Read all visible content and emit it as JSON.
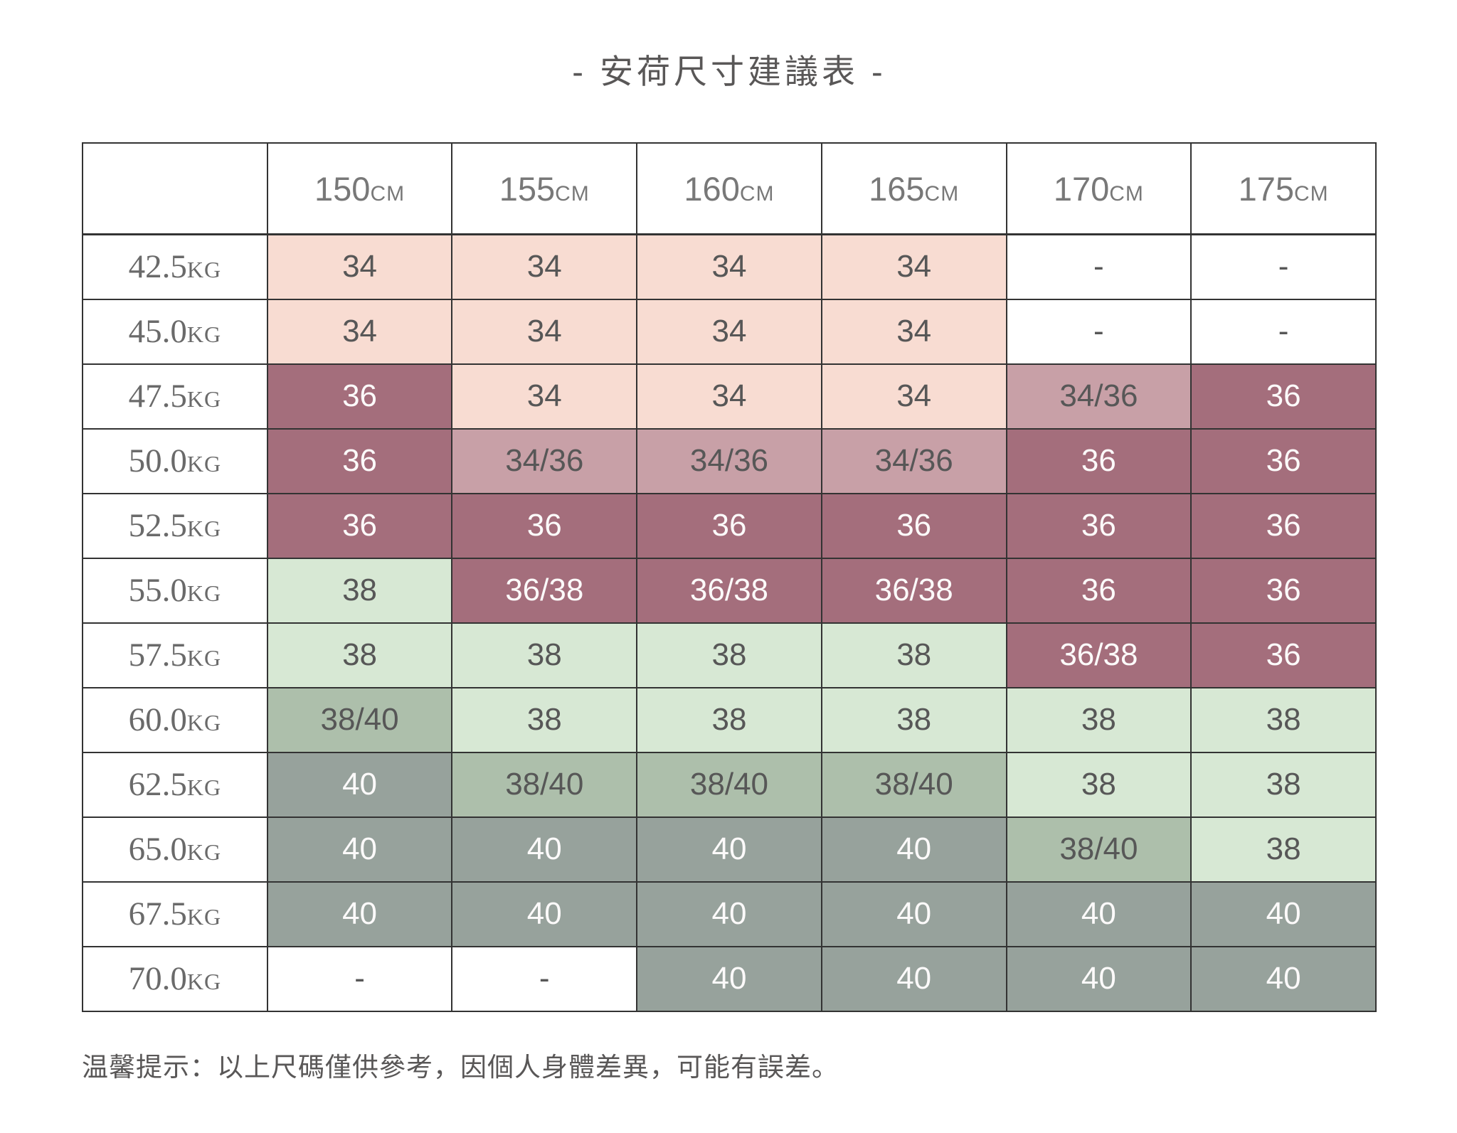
{
  "title": "- 安荷尺寸建議表 -",
  "footer": "温馨提示：以上尺碼僅供參考，因個人身體差異，可能有誤差。",
  "columns": [
    {
      "value": "150",
      "unit": "CM"
    },
    {
      "value": "155",
      "unit": "CM"
    },
    {
      "value": "160",
      "unit": "CM"
    },
    {
      "value": "165",
      "unit": "CM"
    },
    {
      "value": "170",
      "unit": "CM"
    },
    {
      "value": "175",
      "unit": "CM"
    }
  ],
  "rows": [
    {
      "weight": "42.5",
      "unit": "KG",
      "cells": [
        {
          "text": "34",
          "style": "pink"
        },
        {
          "text": "34",
          "style": "pink"
        },
        {
          "text": "34",
          "style": "pink"
        },
        {
          "text": "34",
          "style": "pink"
        },
        {
          "text": "-",
          "style": "blank"
        },
        {
          "text": "-",
          "style": "blank"
        }
      ]
    },
    {
      "weight": "45.0",
      "unit": "KG",
      "cells": [
        {
          "text": "34",
          "style": "pink"
        },
        {
          "text": "34",
          "style": "pink"
        },
        {
          "text": "34",
          "style": "pink"
        },
        {
          "text": "34",
          "style": "pink"
        },
        {
          "text": "-",
          "style": "blank"
        },
        {
          "text": "-",
          "style": "blank"
        }
      ]
    },
    {
      "weight": "47.5",
      "unit": "KG",
      "cells": [
        {
          "text": "36",
          "style": "mauve-dark"
        },
        {
          "text": "34",
          "style": "pink"
        },
        {
          "text": "34",
          "style": "pink"
        },
        {
          "text": "34",
          "style": "pink"
        },
        {
          "text": "34/36",
          "style": "mauve-mid"
        },
        {
          "text": "36",
          "style": "mauve-dark"
        }
      ]
    },
    {
      "weight": "50.0",
      "unit": "KG",
      "cells": [
        {
          "text": "36",
          "style": "mauve-dark"
        },
        {
          "text": "34/36",
          "style": "mauve-mid"
        },
        {
          "text": "34/36",
          "style": "mauve-mid"
        },
        {
          "text": "34/36",
          "style": "mauve-mid"
        },
        {
          "text": "36",
          "style": "mauve-dark"
        },
        {
          "text": "36",
          "style": "mauve-dark"
        }
      ]
    },
    {
      "weight": "52.5",
      "unit": "KG",
      "cells": [
        {
          "text": "36",
          "style": "mauve-dark"
        },
        {
          "text": "36",
          "style": "mauve-dark"
        },
        {
          "text": "36",
          "style": "mauve-dark"
        },
        {
          "text": "36",
          "style": "mauve-dark"
        },
        {
          "text": "36",
          "style": "mauve-dark"
        },
        {
          "text": "36",
          "style": "mauve-dark"
        }
      ]
    },
    {
      "weight": "55.0",
      "unit": "KG",
      "cells": [
        {
          "text": "38",
          "style": "green-light"
        },
        {
          "text": "36/38",
          "style": "mauve-dark"
        },
        {
          "text": "36/38",
          "style": "mauve-dark"
        },
        {
          "text": "36/38",
          "style": "mauve-dark"
        },
        {
          "text": "36",
          "style": "mauve-dark"
        },
        {
          "text": "36",
          "style": "mauve-dark"
        }
      ]
    },
    {
      "weight": "57.5",
      "unit": "KG",
      "cells": [
        {
          "text": "38",
          "style": "green-light"
        },
        {
          "text": "38",
          "style": "green-light"
        },
        {
          "text": "38",
          "style": "green-light"
        },
        {
          "text": "38",
          "style": "green-light"
        },
        {
          "text": "36/38",
          "style": "mauve-dark"
        },
        {
          "text": "36",
          "style": "mauve-dark"
        }
      ]
    },
    {
      "weight": "60.0",
      "unit": "KG",
      "cells": [
        {
          "text": "38/40",
          "style": "green-mid"
        },
        {
          "text": "38",
          "style": "green-light"
        },
        {
          "text": "38",
          "style": "green-light"
        },
        {
          "text": "38",
          "style": "green-light"
        },
        {
          "text": "38",
          "style": "green-light"
        },
        {
          "text": "38",
          "style": "green-light"
        }
      ]
    },
    {
      "weight": "62.5",
      "unit": "KG",
      "cells": [
        {
          "text": "40",
          "style": "green-dark"
        },
        {
          "text": "38/40",
          "style": "green-mid"
        },
        {
          "text": "38/40",
          "style": "green-mid"
        },
        {
          "text": "38/40",
          "style": "green-mid"
        },
        {
          "text": "38",
          "style": "green-light"
        },
        {
          "text": "38",
          "style": "green-light"
        }
      ]
    },
    {
      "weight": "65.0",
      "unit": "KG",
      "cells": [
        {
          "text": "40",
          "style": "green-dark"
        },
        {
          "text": "40",
          "style": "green-dark"
        },
        {
          "text": "40",
          "style": "green-dark"
        },
        {
          "text": "40",
          "style": "green-dark"
        },
        {
          "text": "38/40",
          "style": "green-mid"
        },
        {
          "text": "38",
          "style": "green-light"
        }
      ]
    },
    {
      "weight": "67.5",
      "unit": "KG",
      "cells": [
        {
          "text": "40",
          "style": "green-dark"
        },
        {
          "text": "40",
          "style": "green-dark"
        },
        {
          "text": "40",
          "style": "green-dark"
        },
        {
          "text": "40",
          "style": "green-dark"
        },
        {
          "text": "40",
          "style": "green-dark"
        },
        {
          "text": "40",
          "style": "green-dark"
        }
      ]
    },
    {
      "weight": "70.0",
      "unit": "KG",
      "cells": [
        {
          "text": "-",
          "style": "blank"
        },
        {
          "text": "-",
          "style": "blank"
        },
        {
          "text": "40",
          "style": "green-dark"
        },
        {
          "text": "40",
          "style": "green-dark"
        },
        {
          "text": "40",
          "style": "green-dark"
        },
        {
          "text": "40",
          "style": "green-dark"
        }
      ]
    }
  ],
  "colors": {
    "pink": "#f8dcd2",
    "mauve_mid": "#c8a0a7",
    "mauve_dark": "#a46e7c",
    "green_light": "#d7e8d4",
    "green_mid": "#adbfab",
    "green_dark": "#97a29c",
    "text_dark": "#575757",
    "text_light": "#fcfafa",
    "border": "#333333"
  },
  "chart_data": {
    "type": "table",
    "title": "安荷尺寸建議表",
    "columns": [
      "150CM",
      "155CM",
      "160CM",
      "165CM",
      "170CM",
      "175CM"
    ],
    "row_labels": [
      "42.5KG",
      "45.0KG",
      "47.5KG",
      "50.0KG",
      "52.5KG",
      "55.0KG",
      "57.5KG",
      "60.0KG",
      "62.5KG",
      "65.0KG",
      "67.5KG",
      "70.0KG"
    ],
    "values": [
      [
        "34",
        "34",
        "34",
        "34",
        "-",
        "-"
      ],
      [
        "34",
        "34",
        "34",
        "34",
        "-",
        "-"
      ],
      [
        "36",
        "34",
        "34",
        "34",
        "34/36",
        "36"
      ],
      [
        "36",
        "34/36",
        "34/36",
        "34/36",
        "36",
        "36"
      ],
      [
        "36",
        "36",
        "36",
        "36",
        "36",
        "36"
      ],
      [
        "38",
        "36/38",
        "36/38",
        "36/38",
        "36",
        "36"
      ],
      [
        "38",
        "38",
        "38",
        "38",
        "36/38",
        "36"
      ],
      [
        "38/40",
        "38",
        "38",
        "38",
        "38",
        "38"
      ],
      [
        "40",
        "38/40",
        "38/40",
        "38/40",
        "38",
        "38"
      ],
      [
        "40",
        "40",
        "40",
        "40",
        "38/40",
        "38"
      ],
      [
        "40",
        "40",
        "40",
        "40",
        "40",
        "40"
      ],
      [
        "-",
        "-",
        "40",
        "40",
        "40",
        "40"
      ]
    ],
    "note": "温馨提示：以上尺碼僅供參考，因個人身體差異，可能有誤差。"
  }
}
